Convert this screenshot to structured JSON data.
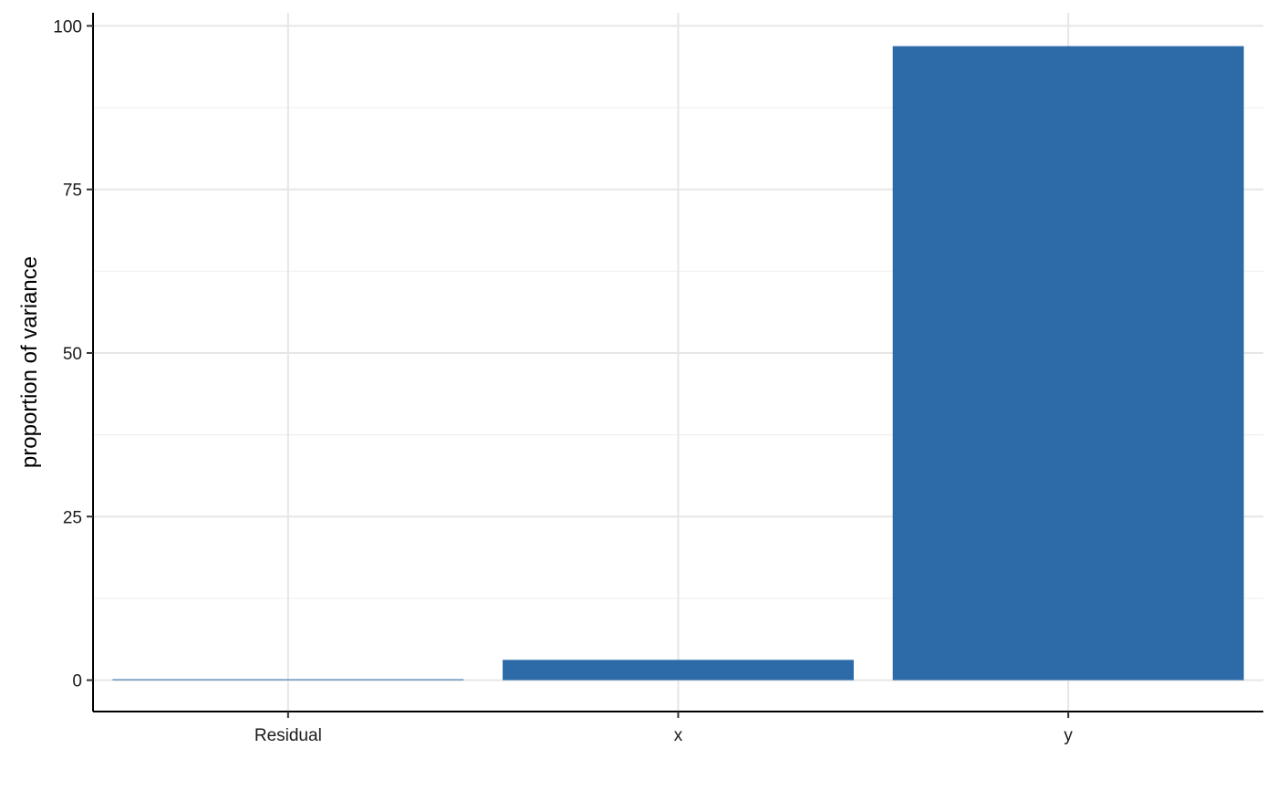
{
  "chart_data": {
    "type": "bar",
    "categories": [
      "Residual",
      "x",
      "y"
    ],
    "values": [
      0.1,
      3.1,
      96.9
    ],
    "xlabel": "",
    "ylabel": "proportion of variance",
    "ylim": [
      -4.8,
      102
    ],
    "yticks": [
      0,
      25,
      50,
      75,
      100
    ],
    "grid": true,
    "colors": {
      "bar": "#2c6ba8",
      "grid_major": "#e6e6e6",
      "grid_minor": "#f0f0f0",
      "axis": "#000000"
    }
  }
}
